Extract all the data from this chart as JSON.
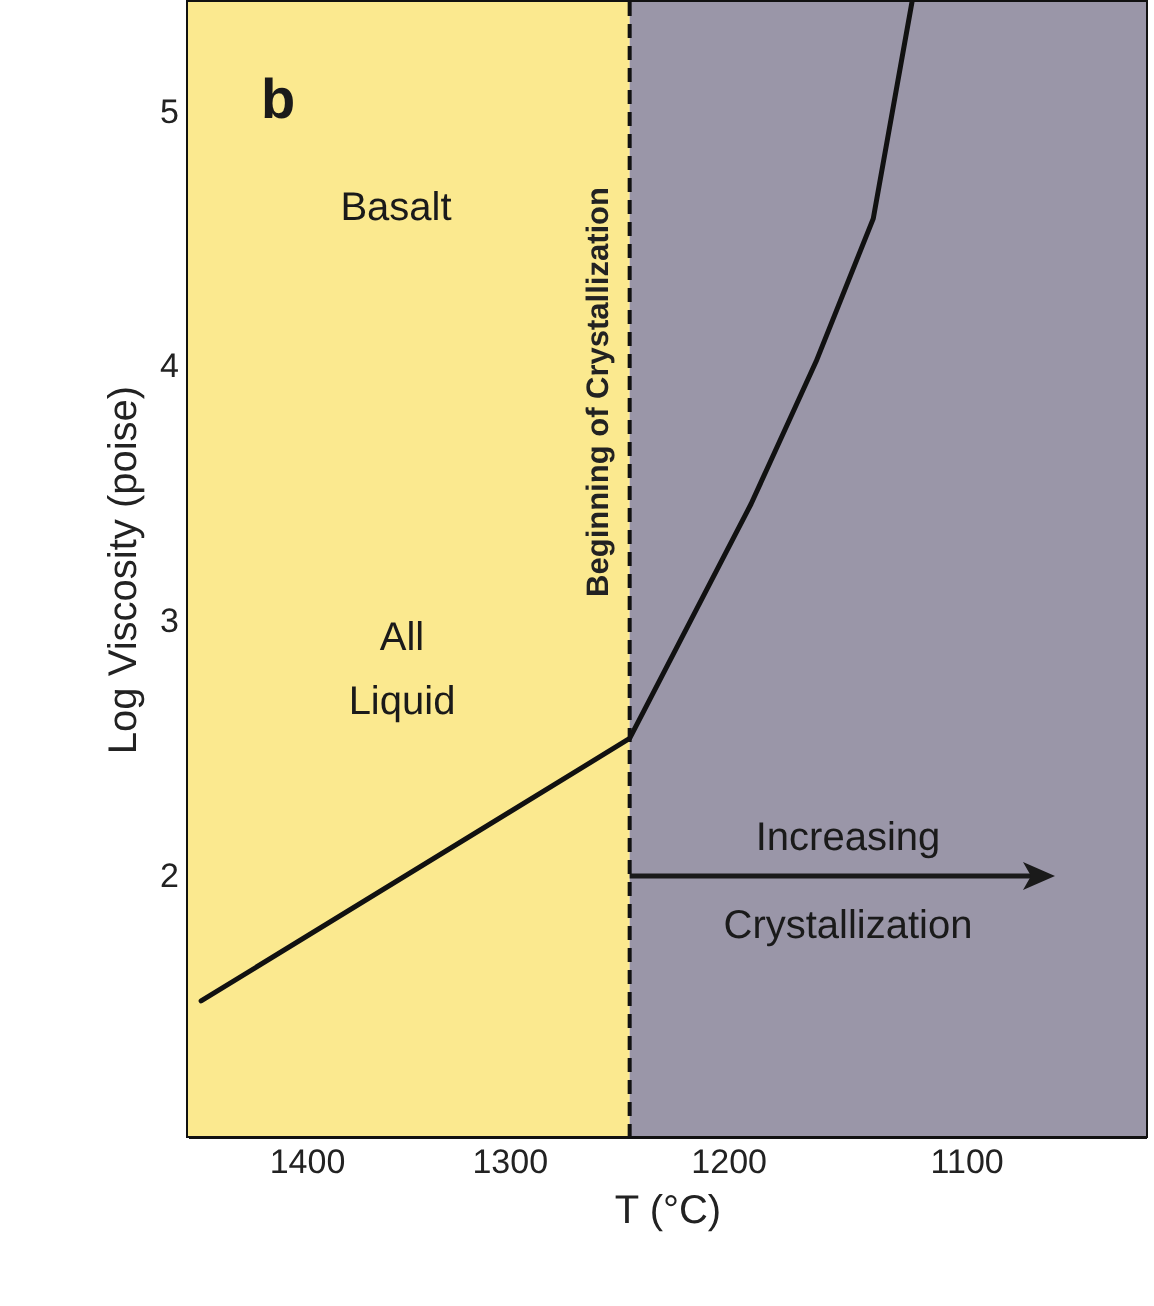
{
  "chart_data": {
    "type": "line",
    "xlabel": "T (°C)",
    "ylabel": "Log Viscosity (poise)",
    "x": [
      1455,
      1244,
      1222,
      1190,
      1162,
      1138,
      1122
    ],
    "series": [
      {
        "color": "#111111",
        "values": [
          1.51,
          2.54,
          2.91,
          3.46,
          4.02,
          4.58,
          5.43
        ]
      }
    ],
    "xlim": [
      1462,
      1030
    ],
    "xticks": [
      1400,
      1300,
      1200,
      1100
    ],
    "ylim": [
      0.98,
      5.43
    ],
    "yticks": [
      2,
      3,
      4,
      5
    ],
    "log": "x",
    "marker": "none",
    "line_style": "solid",
    "ref_lines": [
      {
        "axis": "x",
        "value": 1244,
        "label": "Beginning of Crystallization",
        "line_style": "dashed",
        "color": "#111111"
      }
    ],
    "bands": [
      {
        "axis": "x",
        "from": 1462,
        "to": 1244,
        "color": "#fbe98f"
      },
      {
        "axis": "x",
        "from": 1244,
        "to": 1030,
        "color": "#9a96a8"
      }
    ],
    "annotations": [
      "b",
      "Basalt",
      "All Liquid",
      "Increasing",
      "Crystallization"
    ]
  }
}
